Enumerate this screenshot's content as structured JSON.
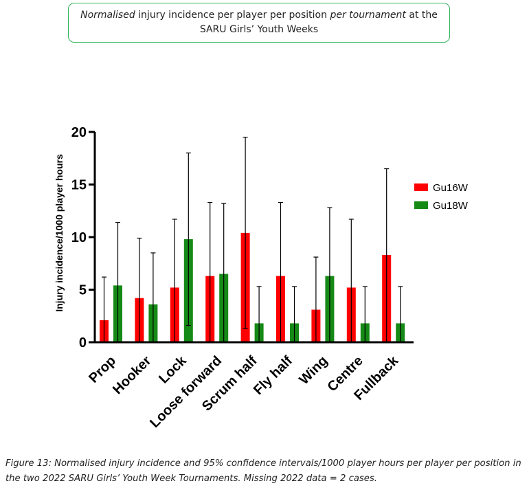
{
  "header": {
    "title_part1": "Normalised",
    "title_part2": " injury incidence per player per position ",
    "title_part3": "per tournament",
    "title_part4": " at the",
    "title_line2": "SARU Girls’ Youth Weeks"
  },
  "caption": "Figure 13: Normalised injury incidence and 95% confidence intervals/1000 player hours per player per position in the two 2022 SARU Girls’ Youth Week Tournaments. Missing 2022 data = 2 cases.",
  "colors": {
    "Gu16W": "#ff0000",
    "Gu18W": "#168a16"
  },
  "chart_data": {
    "type": "bar",
    "ylabel": "Injury incidence/1000 player hours",
    "xlabel": "",
    "ylim": [
      0,
      20
    ],
    "yticks": [
      "0",
      "5",
      "10",
      "15",
      "20"
    ],
    "categories": [
      "Prop",
      "Hooker",
      "Lock",
      "Loose forward",
      "Scrum half",
      "Fly half",
      "Wing",
      "Centre",
      "Fullback"
    ],
    "legend_position": "right",
    "series": [
      {
        "name": "Gu16W",
        "values": [
          2.1,
          4.2,
          5.2,
          6.3,
          10.4,
          6.3,
          3.1,
          5.2,
          8.3
        ],
        "ci_lower": [
          0,
          0,
          0,
          0,
          1.3,
          0,
          0,
          0,
          0
        ],
        "ci_upper": [
          6.2,
          9.9,
          11.7,
          13.3,
          19.5,
          13.3,
          8.1,
          11.7,
          16.5
        ]
      },
      {
        "name": "Gu18W",
        "values": [
          5.4,
          3.6,
          9.8,
          6.5,
          1.8,
          1.8,
          6.3,
          1.8,
          1.8
        ],
        "ci_lower": [
          0,
          0,
          1.6,
          0,
          0,
          0,
          0,
          0,
          0
        ],
        "ci_upper": [
          11.4,
          8.5,
          18.0,
          13.2,
          5.3,
          5.3,
          12.8,
          5.3,
          5.3
        ]
      }
    ]
  }
}
